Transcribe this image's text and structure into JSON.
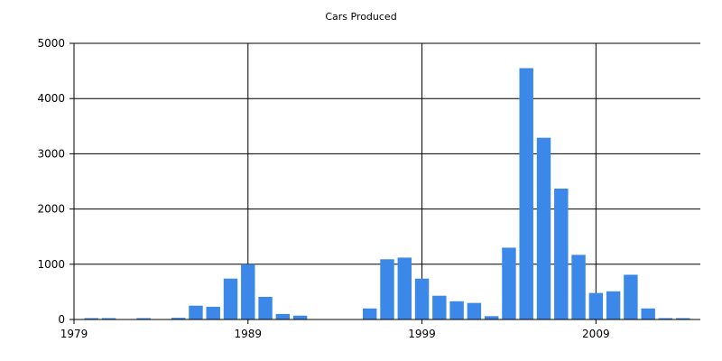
{
  "chart_data": {
    "type": "bar",
    "title": "Cars Produced",
    "xlabel": "",
    "ylabel": "",
    "x_ticks": [
      "1979",
      "1989",
      "1999",
      "2009"
    ],
    "y_ticks": [
      "0",
      "1000",
      "2000",
      "3000",
      "4000",
      "5000"
    ],
    "xlim": [
      1979,
      2015
    ],
    "ylim": [
      0,
      5000
    ],
    "grid": true,
    "legend": "none",
    "bar_color": "#3c88e8",
    "years": [
      1980,
      1981,
      1982,
      1983,
      1984,
      1985,
      1986,
      1987,
      1988,
      1989,
      1990,
      1991,
      1992,
      1993,
      1994,
      1995,
      1996,
      1997,
      1998,
      1999,
      2000,
      2001,
      2002,
      2003,
      2004,
      2005,
      2006,
      2007,
      2008,
      2009,
      2010,
      2011,
      2012,
      2013,
      2014
    ],
    "values": [
      10,
      10,
      0,
      10,
      0,
      30,
      250,
      230,
      740,
      1000,
      410,
      100,
      70,
      0,
      0,
      0,
      200,
      1090,
      1120,
      740,
      430,
      330,
      300,
      60,
      1300,
      4550,
      3290,
      2370,
      1170,
      480,
      510,
      810,
      200,
      10,
      10
    ]
  }
}
